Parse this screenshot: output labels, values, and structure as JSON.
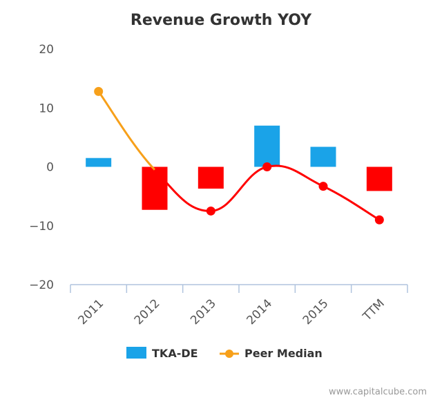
{
  "chart_data": {
    "type": "bar",
    "title": "Revenue Growth YOY",
    "categories": [
      "2011",
      "2012",
      "2013",
      "2014",
      "2015",
      "TTM"
    ],
    "ylim": [
      -20,
      20
    ],
    "yticks": [
      "20",
      "10",
      "0",
      "−10",
      "−20"
    ],
    "series": [
      {
        "name": "TKA-DE",
        "kind": "bar",
        "values": [
          1.5,
          -7.3,
          -3.7,
          7.0,
          3.4,
          -4.1
        ],
        "positive_color": "#1aa3e8",
        "negative_color": "#ff0000"
      },
      {
        "name": "Peer Median",
        "kind": "line",
        "values": [
          12.8,
          -0.5,
          -7.5,
          0.0,
          -3.3,
          -9.0
        ],
        "color": "#f7a01a",
        "below_peer_color": "#ff0000"
      }
    ],
    "legend_position": "bottom",
    "grid": false
  },
  "credit": "www.capitalcube.com"
}
